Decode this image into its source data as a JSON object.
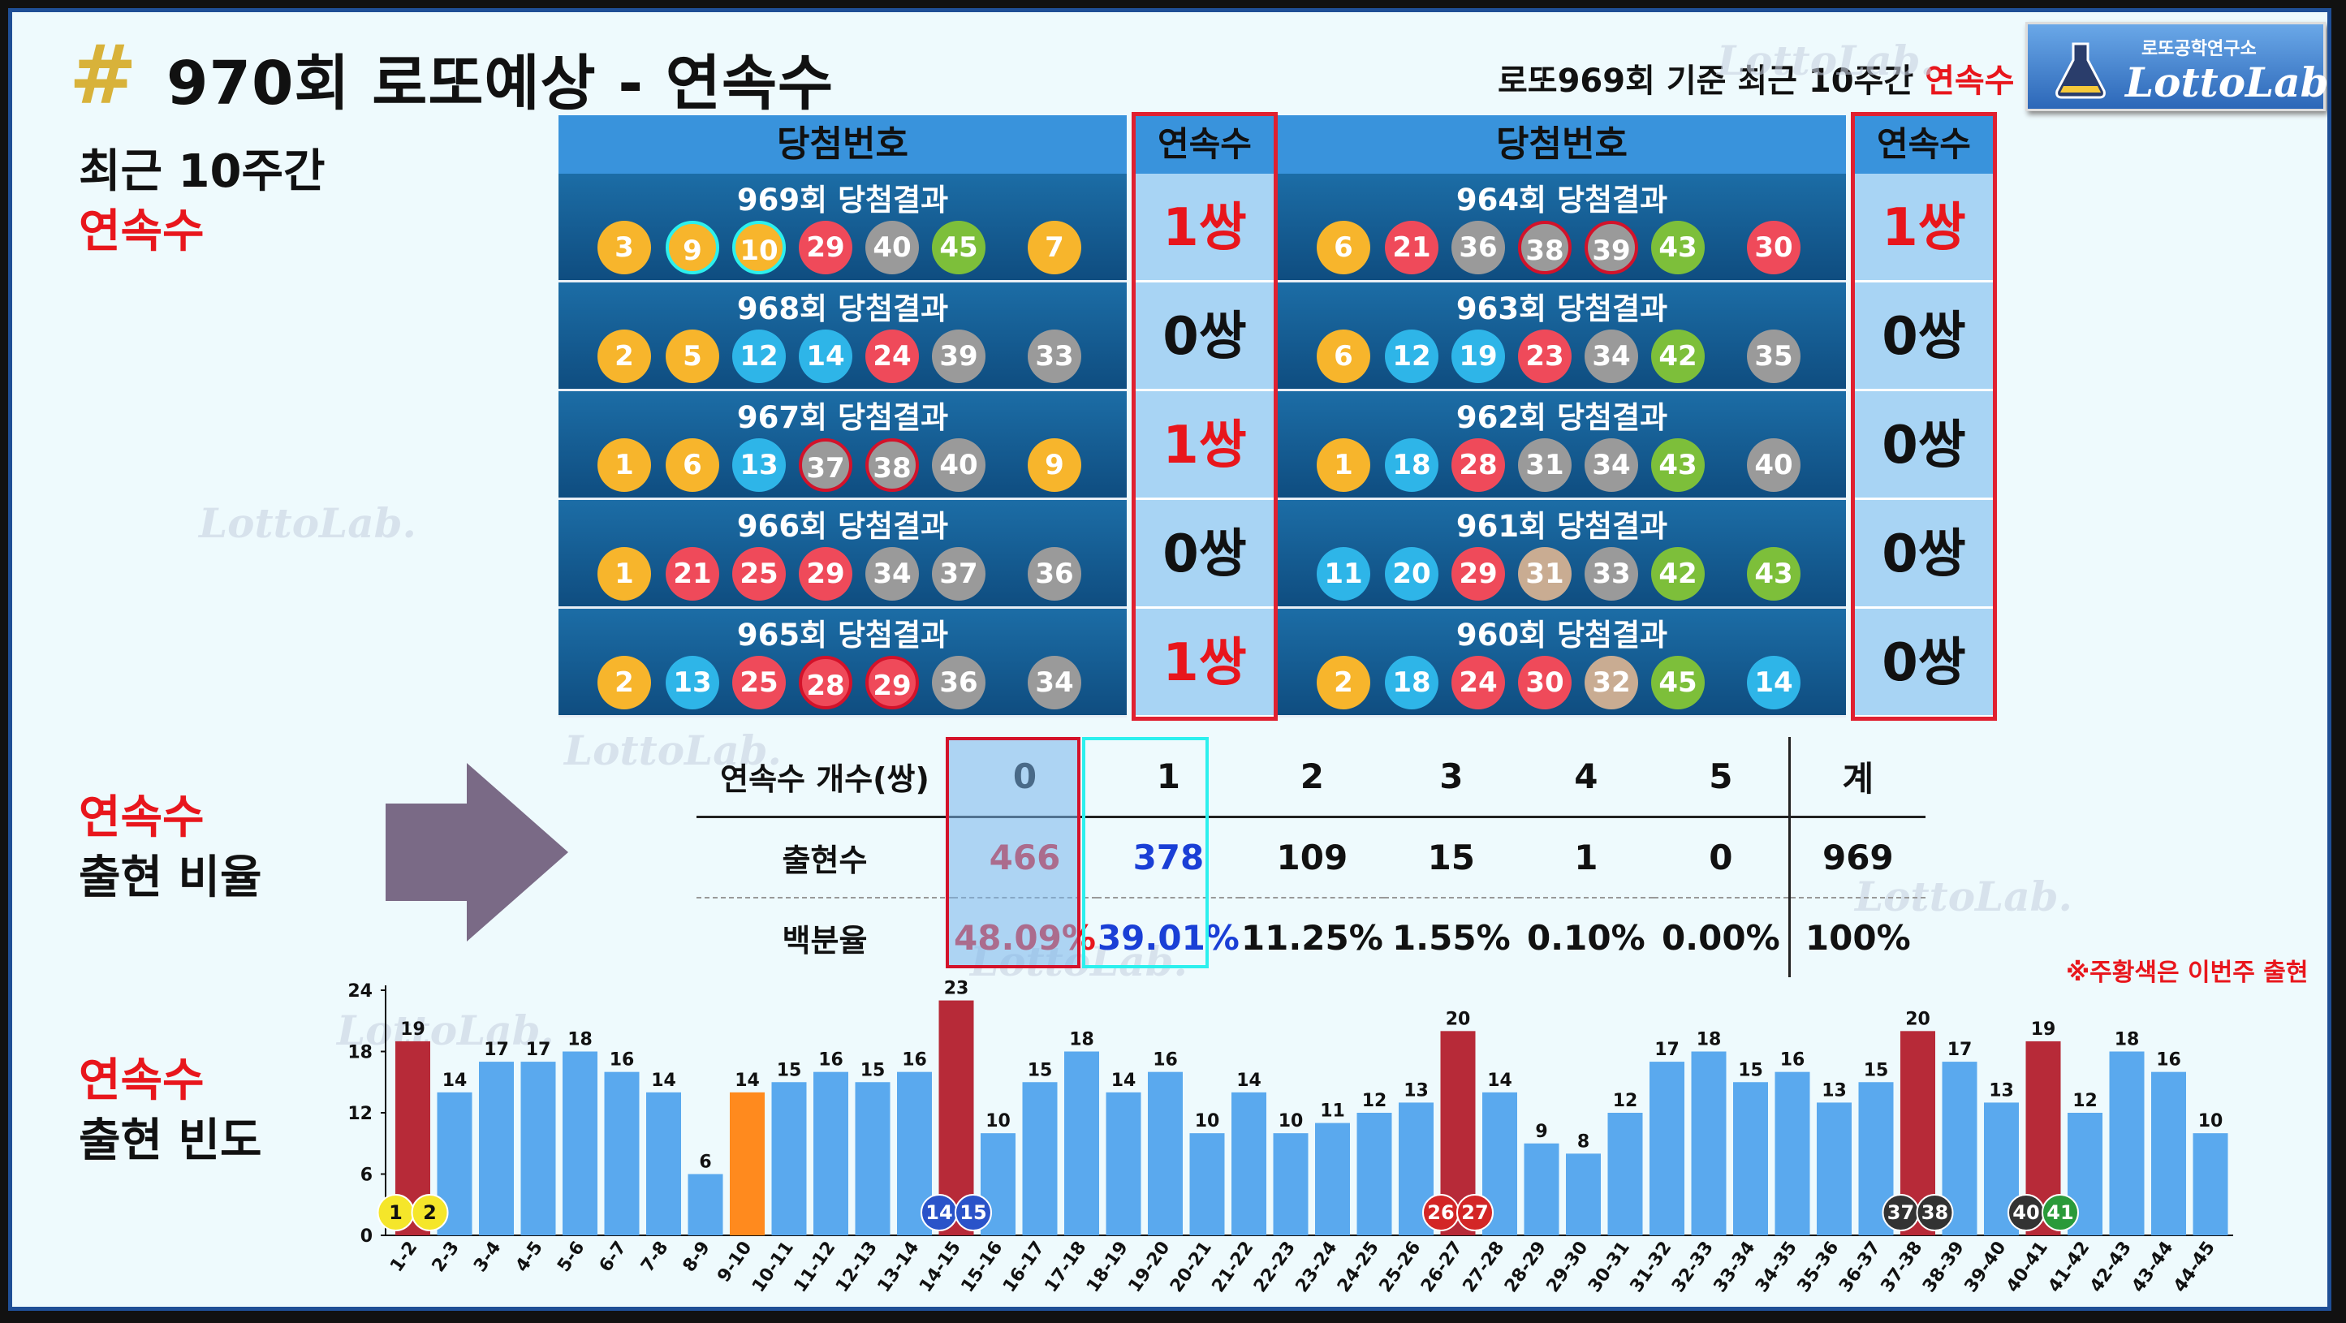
{
  "title": "970회 로또예상 - 연속수",
  "subtitle": {
    "prefix": "로또969회 기준 최근 10주간 ",
    "highlight": "연속수"
  },
  "logo": {
    "small": "로또공학연구소",
    "main": "LottoLab."
  },
  "sharp_symbol": "#",
  "watermark": "LottoLab.",
  "side": {
    "recent_l1": "최근 10주간",
    "recent_l2": "연속수",
    "ratio_l1": "연속수",
    "ratio_l2": "출현 비율",
    "freq_l1": "연속수",
    "freq_l2": "출현 빈도"
  },
  "panel_header": {
    "numbers": "당첨번호",
    "consec": "연속수"
  },
  "colors": {
    "yellow": "#f7b52c",
    "blue": "#2eb5e8",
    "red": "#ef4a5a",
    "gray": "#9a9a9a",
    "green": "#7dbf3a",
    "tan": "#c9ac92",
    "bar_blue": "#5aa9ee",
    "bar_red": "#b72a38",
    "bar_orange": "#ff8a1e",
    "accent_red": "#e8161c"
  },
  "draws_left": [
    {
      "label": "969회 당첨결과",
      "balls": [
        {
          "n": "3",
          "c": "yellow"
        },
        {
          "n": "9",
          "c": "yellow",
          "hl": "c"
        },
        {
          "n": "10",
          "c": "yellow",
          "hl": "c"
        },
        {
          "n": "29",
          "c": "red"
        },
        {
          "n": "40",
          "c": "gray"
        },
        {
          "n": "45",
          "c": "green"
        }
      ],
      "bonus": {
        "n": "7",
        "c": "yellow"
      },
      "consec": "1쌍"
    },
    {
      "label": "968회 당첨결과",
      "balls": [
        {
          "n": "2",
          "c": "yellow"
        },
        {
          "n": "5",
          "c": "yellow"
        },
        {
          "n": "12",
          "c": "blue"
        },
        {
          "n": "14",
          "c": "blue"
        },
        {
          "n": "24",
          "c": "red"
        },
        {
          "n": "39",
          "c": "gray"
        }
      ],
      "bonus": {
        "n": "33",
        "c": "gray"
      },
      "consec": "0쌍"
    },
    {
      "label": "967회 당첨결과",
      "balls": [
        {
          "n": "1",
          "c": "yellow"
        },
        {
          "n": "6",
          "c": "yellow"
        },
        {
          "n": "13",
          "c": "blue"
        },
        {
          "n": "37",
          "c": "gray",
          "hl": "r"
        },
        {
          "n": "38",
          "c": "gray",
          "hl": "r"
        },
        {
          "n": "40",
          "c": "gray"
        }
      ],
      "bonus": {
        "n": "9",
        "c": "yellow"
      },
      "consec": "1쌍"
    },
    {
      "label": "966회 당첨결과",
      "balls": [
        {
          "n": "1",
          "c": "yellow"
        },
        {
          "n": "21",
          "c": "red"
        },
        {
          "n": "25",
          "c": "red"
        },
        {
          "n": "29",
          "c": "red"
        },
        {
          "n": "34",
          "c": "gray"
        },
        {
          "n": "37",
          "c": "gray"
        }
      ],
      "bonus": {
        "n": "36",
        "c": "gray"
      },
      "consec": "0쌍"
    },
    {
      "label": "965회 당첨결과",
      "balls": [
        {
          "n": "2",
          "c": "yellow"
        },
        {
          "n": "13",
          "c": "blue"
        },
        {
          "n": "25",
          "c": "red"
        },
        {
          "n": "28",
          "c": "red",
          "hl": "r"
        },
        {
          "n": "29",
          "c": "red",
          "hl": "r"
        },
        {
          "n": "36",
          "c": "gray"
        }
      ],
      "bonus": {
        "n": "34",
        "c": "gray"
      },
      "consec": "1쌍"
    }
  ],
  "draws_right": [
    {
      "label": "964회 당첨결과",
      "balls": [
        {
          "n": "6",
          "c": "yellow"
        },
        {
          "n": "21",
          "c": "red"
        },
        {
          "n": "36",
          "c": "gray"
        },
        {
          "n": "38",
          "c": "gray",
          "hl": "r"
        },
        {
          "n": "39",
          "c": "gray",
          "hl": "r"
        },
        {
          "n": "43",
          "c": "green"
        }
      ],
      "bonus": {
        "n": "30",
        "c": "red"
      },
      "consec": "1쌍"
    },
    {
      "label": "963회 당첨결과",
      "balls": [
        {
          "n": "6",
          "c": "yellow"
        },
        {
          "n": "12",
          "c": "blue"
        },
        {
          "n": "19",
          "c": "blue"
        },
        {
          "n": "23",
          "c": "red"
        },
        {
          "n": "34",
          "c": "gray"
        },
        {
          "n": "42",
          "c": "green"
        }
      ],
      "bonus": {
        "n": "35",
        "c": "gray"
      },
      "consec": "0쌍"
    },
    {
      "label": "962회 당첨결과",
      "balls": [
        {
          "n": "1",
          "c": "yellow"
        },
        {
          "n": "18",
          "c": "blue"
        },
        {
          "n": "28",
          "c": "red"
        },
        {
          "n": "31",
          "c": "gray"
        },
        {
          "n": "34",
          "c": "gray"
        },
        {
          "n": "43",
          "c": "green"
        }
      ],
      "bonus": {
        "n": "40",
        "c": "gray"
      },
      "consec": "0쌍"
    },
    {
      "label": "961회 당첨결과",
      "balls": [
        {
          "n": "11",
          "c": "blue"
        },
        {
          "n": "20",
          "c": "blue"
        },
        {
          "n": "29",
          "c": "red"
        },
        {
          "n": "31",
          "c": "tan"
        },
        {
          "n": "33",
          "c": "gray"
        },
        {
          "n": "42",
          "c": "green"
        }
      ],
      "bonus": {
        "n": "43",
        "c": "green"
      },
      "consec": "0쌍"
    },
    {
      "label": "960회 당첨결과",
      "balls": [
        {
          "n": "2",
          "c": "yellow"
        },
        {
          "n": "18",
          "c": "blue"
        },
        {
          "n": "24",
          "c": "red"
        },
        {
          "n": "30",
          "c": "red"
        },
        {
          "n": "32",
          "c": "tan"
        },
        {
          "n": "45",
          "c": "green"
        }
      ],
      "bonus": {
        "n": "14",
        "c": "blue"
      },
      "consec": "0쌍"
    }
  ],
  "stats": {
    "header_label": "연속수 개수(쌍)",
    "columns": [
      "0",
      "1",
      "2",
      "3",
      "4",
      "5",
      "계"
    ],
    "rows": [
      {
        "label": "출현수",
        "values": [
          "466",
          "378",
          "109",
          "15",
          "1",
          "0",
          "969"
        ]
      },
      {
        "label": "백분율",
        "values": [
          "48.09%",
          "39.01%",
          "11.25%",
          "1.55%",
          "0.10%",
          "0.00%",
          "100%"
        ]
      }
    ]
  },
  "note": "※주황색은 이번주 출현",
  "chart_data": {
    "type": "bar",
    "categories": [
      "1-2",
      "2-3",
      "3-4",
      "4-5",
      "5-6",
      "6-7",
      "7-8",
      "8-9",
      "9-10",
      "10-11",
      "11-12",
      "12-13",
      "13-14",
      "14-15",
      "15-16",
      "16-17",
      "17-18",
      "18-19",
      "19-20",
      "20-21",
      "21-22",
      "22-23",
      "23-24",
      "24-25",
      "25-26",
      "26-27",
      "27-28",
      "28-29",
      "29-30",
      "30-31",
      "31-32",
      "32-33",
      "33-34",
      "34-35",
      "35-36",
      "36-37",
      "37-38",
      "38-39",
      "39-40",
      "40-41",
      "41-42",
      "42-43",
      "43-44",
      "44-45"
    ],
    "values": [
      19,
      14,
      17,
      17,
      18,
      16,
      14,
      6,
      14,
      15,
      16,
      15,
      16,
      23,
      10,
      15,
      18,
      14,
      16,
      10,
      14,
      10,
      11,
      12,
      13,
      20,
      14,
      9,
      8,
      12,
      17,
      18,
      15,
      16,
      13,
      15,
      20,
      17,
      13,
      19,
      12,
      18,
      16,
      10
    ],
    "highlight_red": [
      "1-2",
      "14-15",
      "26-27",
      "37-38",
      "40-41"
    ],
    "highlight_orange": [
      "9-10"
    ],
    "yticks": [
      0,
      6,
      12,
      18,
      24
    ],
    "ylim": [
      0,
      24
    ],
    "marker_balls": [
      {
        "n": "1",
        "c": "#f5e62a",
        "t": "#111"
      },
      {
        "n": "2",
        "c": "#f5e62a",
        "t": "#111"
      },
      {
        "n": "14",
        "c": "#2a53c9",
        "t": "#fff"
      },
      {
        "n": "15",
        "c": "#2a53c9",
        "t": "#fff"
      },
      {
        "n": "26",
        "c": "#d32626",
        "t": "#fff"
      },
      {
        "n": "27",
        "c": "#d32626",
        "t": "#fff"
      },
      {
        "n": "37",
        "c": "#333333",
        "t": "#fff"
      },
      {
        "n": "38",
        "c": "#333333",
        "t": "#fff"
      },
      {
        "n": "40",
        "c": "#333333",
        "t": "#fff"
      },
      {
        "n": "41",
        "c": "#2a9a3a",
        "t": "#fff"
      }
    ]
  }
}
